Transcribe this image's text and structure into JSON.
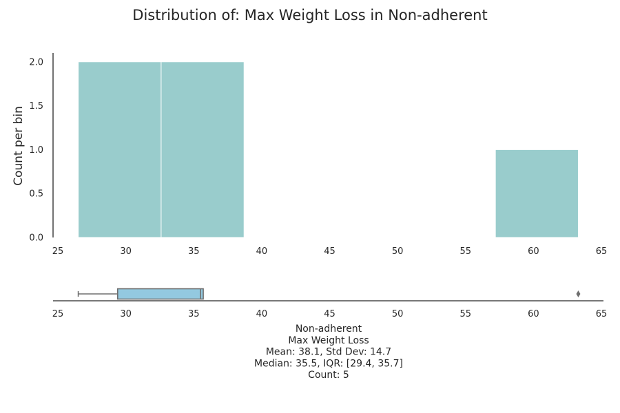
{
  "title": "Distribution of: Max Weight Loss in Non-adherent",
  "colors": {
    "hist_fill": "#99cccc",
    "box_fill": "#93c9e0",
    "box_line": "#6e6e6e",
    "axis": "#262626"
  },
  "chart_data": [
    {
      "type": "histogram",
      "title": "Distribution of: Max Weight Loss in Non-adherent",
      "xlabel": "",
      "ylabel": "Count per bin",
      "xlim": [
        25,
        65
      ],
      "ylim": [
        0,
        2.1
      ],
      "x_ticks": [
        "25",
        "30",
        "35",
        "40",
        "45",
        "50",
        "55",
        "60",
        "65"
      ],
      "x_tick_values": [
        25,
        30,
        35,
        40,
        45,
        50,
        55,
        60,
        65
      ],
      "y_ticks": [
        "0.0",
        "0.5",
        "1.0",
        "1.5",
        "2.0"
      ],
      "y_tick_values": [
        0,
        0.5,
        1.0,
        1.5,
        2.0
      ],
      "bins": [
        {
          "x0": 26.5,
          "x1": 32.6,
          "count": 2
        },
        {
          "x0": 32.6,
          "x1": 38.7,
          "count": 2
        },
        {
          "x0": 57.2,
          "x1": 63.3,
          "count": 1
        }
      ],
      "grid": false
    },
    {
      "type": "box",
      "xlim": [
        25,
        65
      ],
      "x_ticks": [
        "25",
        "30",
        "35",
        "40",
        "45",
        "50",
        "55",
        "60",
        "65"
      ],
      "x_tick_values": [
        25,
        30,
        35,
        40,
        45,
        50,
        55,
        60,
        65
      ],
      "whisker_low": 26.5,
      "q1": 29.4,
      "median": 35.5,
      "q3": 35.7,
      "whisker_high": 35.7,
      "outliers": [
        63.3
      ]
    }
  ],
  "stats_lines": [
    "Non-adherent",
    "Max Weight Loss",
    "Mean: 38.1, Std Dev: 14.7",
    "Median: 35.5, IQR: [29.4, 35.7]",
    "Count: 5"
  ]
}
